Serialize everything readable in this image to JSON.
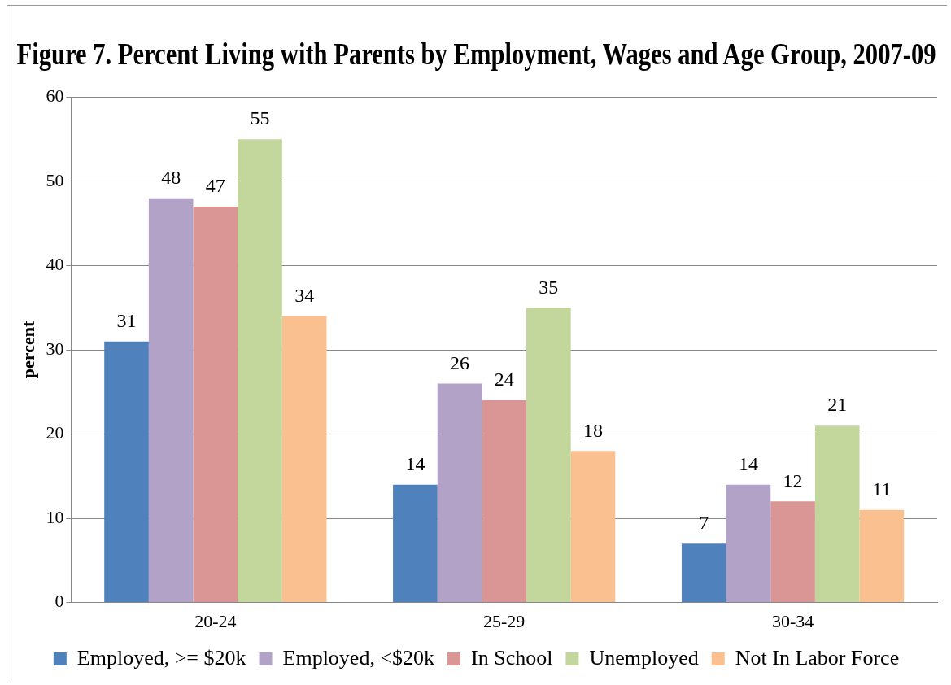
{
  "chart_data": {
    "type": "bar",
    "title": "Figure 7. Percent Living with Parents by Employment, Wages and Age Group, 2007-09",
    "ylabel": "percent",
    "categories": [
      "20-24",
      "25-29",
      "30-34"
    ],
    "series": [
      {
        "name": "Employed, >= $20k",
        "color": "#4f81bd",
        "values": [
          31,
          14,
          7
        ]
      },
      {
        "name": "Employed, <$20k",
        "color": "#b3a2c7",
        "values": [
          48,
          26,
          14
        ]
      },
      {
        "name": "In School",
        "color": "#d99694",
        "values": [
          47,
          24,
          12
        ]
      },
      {
        "name": "Unemployed",
        "color": "#c3d69b",
        "values": [
          55,
          35,
          21
        ]
      },
      {
        "name": "Not In Labor Force",
        "color": "#fac090",
        "values": [
          34,
          18,
          11
        ]
      }
    ],
    "ylim": [
      0,
      60
    ],
    "yticks": [
      0,
      10,
      20,
      30,
      40,
      50,
      60
    ],
    "grid": "y",
    "legend": "bottom",
    "data_labels": true
  }
}
